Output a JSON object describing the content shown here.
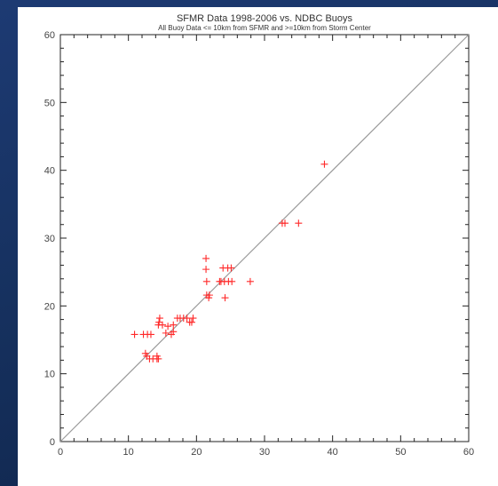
{
  "chart_data": {
    "type": "scatter",
    "title": "SFMR Data 1998-2006 vs. NDBC Buoys",
    "subtitle": "All Buoy Data <= 10km from SFMR and >=10km from Storm Center",
    "xlabel": "",
    "ylabel": "",
    "xlim": [
      0,
      60
    ],
    "ylim": [
      0,
      60
    ],
    "xticks": [
      0,
      10,
      20,
      30,
      40,
      50,
      60
    ],
    "yticks": [
      0,
      10,
      20,
      30,
      40,
      50,
      60
    ],
    "grid": false,
    "reference_line": {
      "from": [
        0,
        0
      ],
      "to": [
        60,
        60
      ]
    },
    "marker": "+",
    "color": "#ff2a2a",
    "points": [
      [
        10.9,
        15.8
      ],
      [
        12.2,
        15.8
      ],
      [
        12.8,
        15.8
      ],
      [
        13.3,
        15.8
      ],
      [
        12.5,
        13.0
      ],
      [
        12.7,
        12.6
      ],
      [
        13.1,
        12.2
      ],
      [
        13.6,
        12.2
      ],
      [
        14.2,
        12.2
      ],
      [
        14.2,
        12.6
      ],
      [
        14.4,
        12.2
      ],
      [
        14.4,
        17.2
      ],
      [
        14.5,
        17.6
      ],
      [
        14.6,
        18.2
      ],
      [
        15.0,
        17.2
      ],
      [
        15.5,
        16.0
      ],
      [
        15.8,
        17.0
      ],
      [
        16.3,
        15.8
      ],
      [
        16.6,
        16.2
      ],
      [
        16.6,
        17.2
      ],
      [
        17.2,
        18.2
      ],
      [
        17.6,
        18.2
      ],
      [
        18.1,
        18.2
      ],
      [
        18.6,
        18.2
      ],
      [
        19.0,
        17.6
      ],
      [
        19.3,
        17.6
      ],
      [
        19.5,
        18.2
      ],
      [
        21.4,
        27.0
      ],
      [
        21.4,
        25.4
      ],
      [
        21.5,
        23.6
      ],
      [
        21.5,
        21.6
      ],
      [
        21.8,
        21.2
      ],
      [
        21.9,
        21.6
      ],
      [
        23.4,
        23.6
      ],
      [
        23.6,
        23.6
      ],
      [
        23.9,
        25.6
      ],
      [
        24.1,
        23.6
      ],
      [
        24.2,
        21.2
      ],
      [
        24.6,
        25.6
      ],
      [
        24.7,
        23.6
      ],
      [
        25.1,
        25.6
      ],
      [
        25.2,
        23.6
      ],
      [
        27.9,
        23.6
      ],
      [
        32.6,
        32.2
      ],
      [
        33.0,
        32.2
      ],
      [
        35.0,
        32.2
      ],
      [
        38.8,
        40.9
      ]
    ]
  }
}
